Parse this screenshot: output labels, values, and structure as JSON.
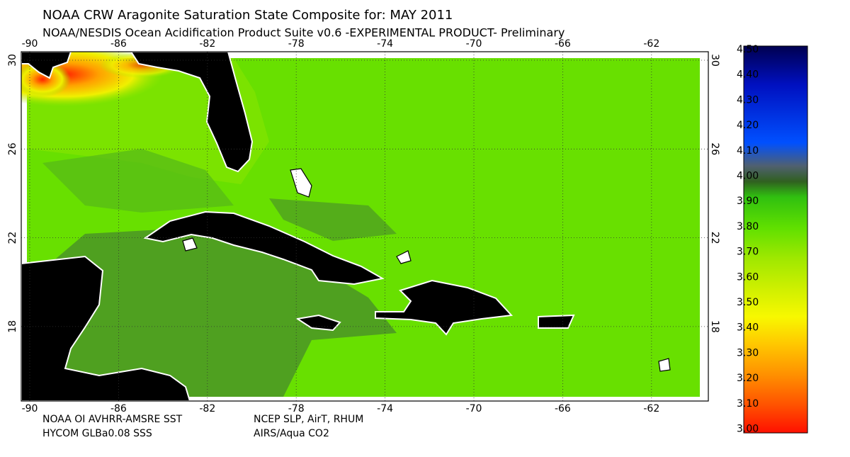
{
  "header": {
    "title": "NOAA CRW Aragonite Saturation State Composite for: MAY 2011",
    "subtitle": "NOAA/NESDIS Ocean Acidification Product Suite  v0.6 -EXPERIMENTAL PRODUCT-    Preliminary"
  },
  "map": {
    "lon_ticks": [
      "-90",
      "-86",
      "-82",
      "-78",
      "-74",
      "-70",
      "-66",
      "-62"
    ],
    "lat_ticks": [
      "30",
      "26",
      "22",
      "18"
    ]
  },
  "credits": [
    [
      "NOAA OI AVHRR-AMSRE SST",
      "NCEP SLP, AirT, RHUM"
    ],
    [
      "HYCOM GLBa0.08 SSS",
      "AIRS/Aqua CO2"
    ]
  ],
  "colorbar": {
    "labels": [
      "4.50",
      "4.40",
      "4.30",
      "4.20",
      "4.10",
      "4.00",
      "3.90",
      "3.80",
      "3.70",
      "3.60",
      "3.50",
      "3.40",
      "3.30",
      "3.20",
      "3.10",
      "3.00"
    ]
  }
}
